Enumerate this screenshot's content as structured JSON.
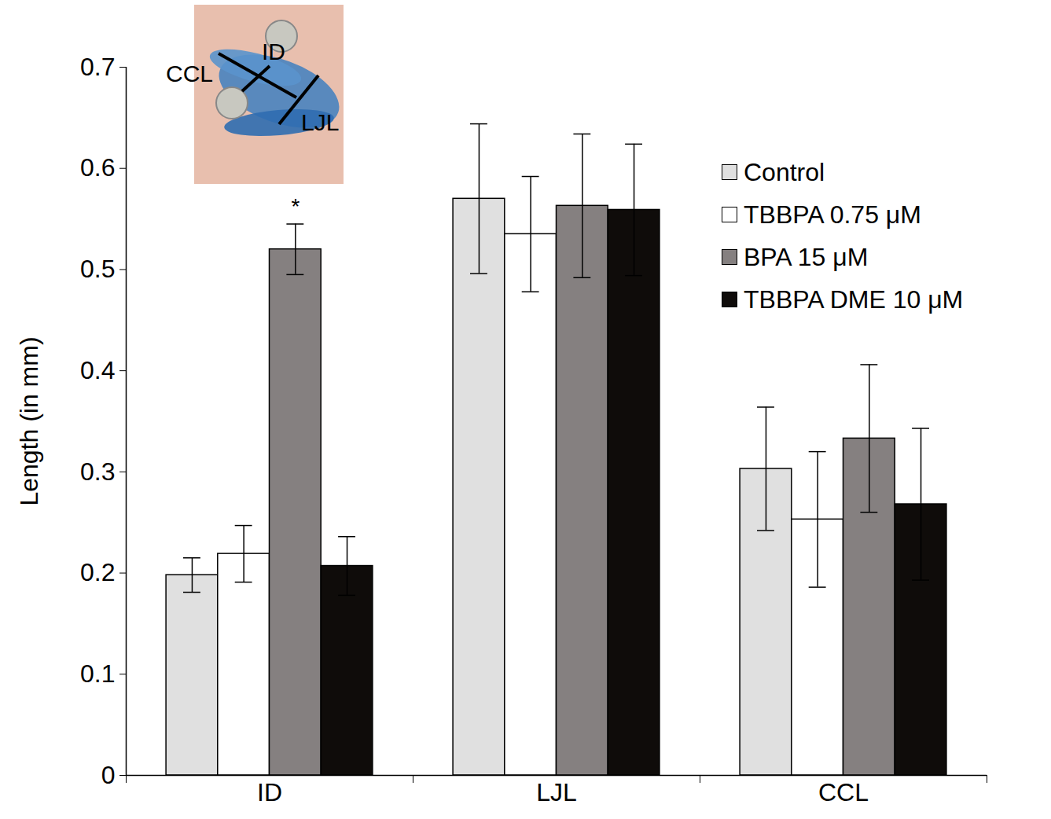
{
  "chart_data": {
    "type": "bar",
    "y_label": "Length (in mm)",
    "categories": [
      "ID",
      "LJL",
      "CCL"
    ],
    "series": [
      {
        "name": "Control",
        "color": "#e0e0e0",
        "values": [
          0.198,
          0.57,
          0.303
        ],
        "errors": [
          0.017,
          0.074,
          0.061
        ]
      },
      {
        "name": "TBBPA 0.75 μM",
        "color": "#ffffff",
        "values": [
          0.219,
          0.535,
          0.253
        ],
        "errors": [
          0.028,
          0.057,
          0.067
        ]
      },
      {
        "name": "BPA 15 μM",
        "color": "#858080",
        "values": [
          0.52,
          0.563,
          0.333
        ],
        "errors": [
          0.025,
          0.071,
          0.073
        ]
      },
      {
        "name": "TBBPA DME 10 μM",
        "color": "#0f0c0a",
        "values": [
          0.207,
          0.559,
          0.268
        ],
        "errors": [
          0.029,
          0.065,
          0.075
        ]
      }
    ],
    "annotations": [
      {
        "category": "ID",
        "series": "BPA 15 μM",
        "text": "*"
      }
    ],
    "inset_labels": [
      "CCL",
      "ID",
      "LJL"
    ],
    "ylim": [
      0,
      0.7
    ],
    "yticks": [
      0,
      0.1,
      0.2,
      0.3,
      0.4,
      0.5,
      0.6,
      0.7
    ],
    "grid": false,
    "legend": "right"
  }
}
